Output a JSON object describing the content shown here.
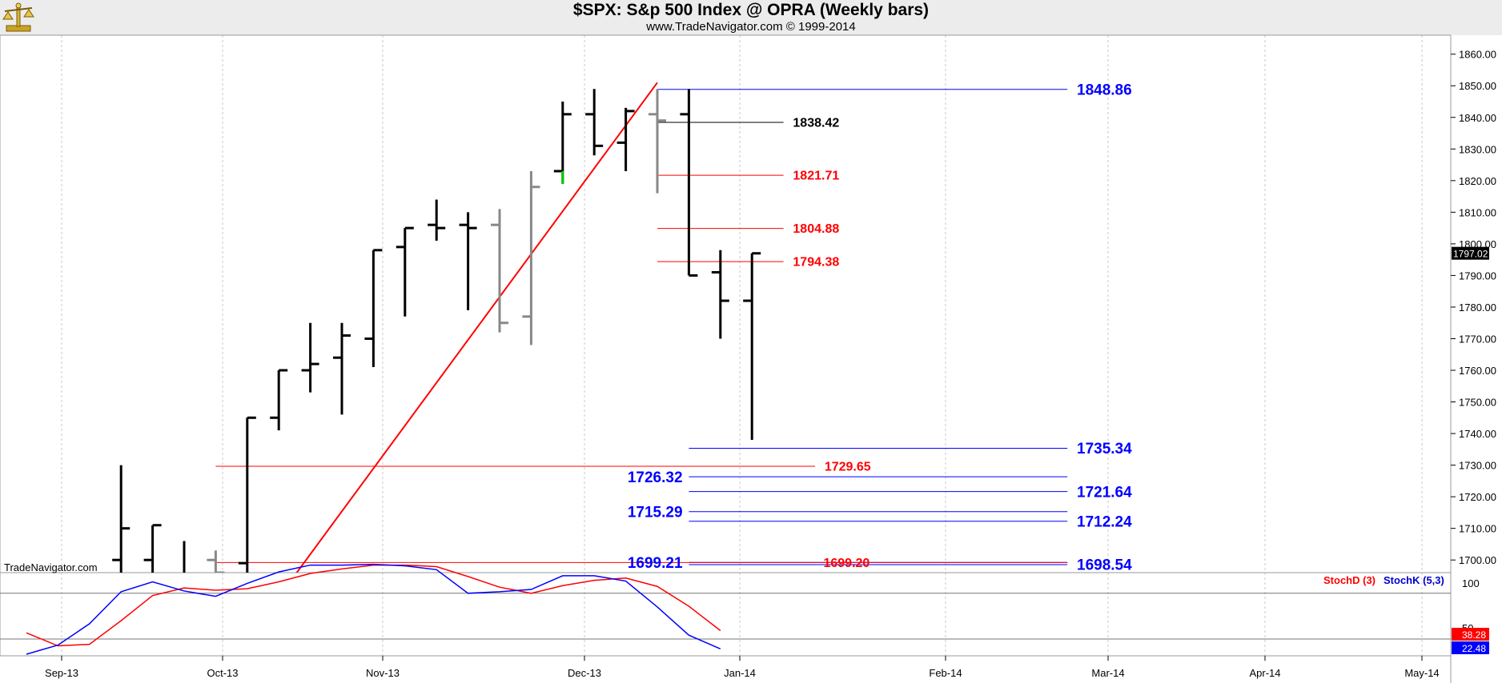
{
  "header": {
    "title": "$SPX:  S&p 500 Index @ OPRA  (Weekly bars)",
    "subtitle": "www.TradeNavigator.com © 1999-2014",
    "watermark": "TradeNavigator.com",
    "logo_icon": "gold-balance-scale-icon"
  },
  "chart_data": {
    "type": "ohlc",
    "x_tick_labels": [
      "Sep-13",
      "Oct-13",
      "Nov-13",
      "Dec-13",
      "Jan-14",
      "Feb-14",
      "Mar-14",
      "Apr-14",
      "May-14"
    ],
    "price_axis": {
      "ylim": [
        1696,
        1866
      ],
      "ticks": [
        1700,
        1710,
        1720,
        1730,
        1740,
        1750,
        1760,
        1770,
        1780,
        1790,
        1800,
        1810,
        1820,
        1830,
        1840,
        1850,
        1860
      ],
      "last_price": "1797.02"
    },
    "bars": [
      {
        "w": 3,
        "o": 1700,
        "h": 1730,
        "l": 1690,
        "c": 1710,
        "color": "#000000"
      },
      {
        "w": 4,
        "o": 1700,
        "h": 1711,
        "l": 1690,
        "c": 1711,
        "color": "#000000"
      },
      {
        "w": 5,
        "o": 1690,
        "h": 1706,
        "l": 1680,
        "c": 1690,
        "color": "#000000"
      },
      {
        "w": 6,
        "o": 1700,
        "h": 1703,
        "l": 1688,
        "c": 1696,
        "color": "#888888"
      },
      {
        "w": 7,
        "o": 1699,
        "h": 1745,
        "l": 1695,
        "c": 1745,
        "color": "#000000"
      },
      {
        "w": 8,
        "o": 1745,
        "h": 1760,
        "l": 1741,
        "c": 1760,
        "color": "#000000"
      },
      {
        "w": 9,
        "o": 1760,
        "h": 1775,
        "l": 1753,
        "c": 1762,
        "color": "#000000"
      },
      {
        "w": 10,
        "o": 1764,
        "h": 1775,
        "l": 1746,
        "c": 1771,
        "color": "#000000"
      },
      {
        "w": 11,
        "o": 1770,
        "h": 1798,
        "l": 1761,
        "c": 1798,
        "color": "#000000"
      },
      {
        "w": 12,
        "o": 1799,
        "h": 1805,
        "l": 1777,
        "c": 1805,
        "color": "#000000"
      },
      {
        "w": 13,
        "o": 1806,
        "h": 1814,
        "l": 1801,
        "c": 1805,
        "color": "#000000"
      },
      {
        "w": 14,
        "o": 1806,
        "h": 1810,
        "l": 1779,
        "c": 1805,
        "color": "#000000"
      },
      {
        "w": 15,
        "o": 1806,
        "h": 1811,
        "l": 1772,
        "c": 1775,
        "color": "#888888"
      },
      {
        "w": 16,
        "o": 1777,
        "h": 1823,
        "l": 1768,
        "c": 1818,
        "color": "#888888"
      },
      {
        "w": 17,
        "o": 1823,
        "h": 1845,
        "l": 1819,
        "c": 1841,
        "color": "#000000",
        "low_tail": "#00cc00"
      },
      {
        "w": 18,
        "o": 1841,
        "h": 1849,
        "l": 1828,
        "c": 1831,
        "color": "#000000"
      },
      {
        "w": 19,
        "o": 1832,
        "h": 1843,
        "l": 1823,
        "c": 1842,
        "color": "#000000"
      },
      {
        "w": 20,
        "o": 1841,
        "h": 1849,
        "l": 1816,
        "c": 1839,
        "color": "#888888"
      },
      {
        "w": 21,
        "o": 1841,
        "h": 1849,
        "l": 1790,
        "c": 1790,
        "color": "#000000"
      },
      {
        "w": 22,
        "o": 1791,
        "h": 1798,
        "l": 1770,
        "c": 1782,
        "color": "#000000"
      },
      {
        "w": 23,
        "o": 1782,
        "h": 1797,
        "l": 1738,
        "c": 1797,
        "color": "#000000"
      }
    ],
    "trendline": {
      "from": {
        "w": 7.98,
        "p": 1688
      },
      "to": {
        "w": 20,
        "p": 1851
      },
      "color": "#ff0000"
    },
    "levels": [
      {
        "value": "1848.86",
        "p": 1848.86,
        "w0": 20,
        "w1": 33,
        "color": "#0000ff",
        "label_w": 33.3,
        "label_side": "right",
        "size": 19
      },
      {
        "value": "1838.42",
        "p": 1838.42,
        "w0": 20,
        "w1": 24,
        "color": "#000000",
        "label_w": 24.3,
        "label_side": "right",
        "size": 16
      },
      {
        "value": "1821.71",
        "p": 1821.71,
        "w0": 20,
        "w1": 24,
        "color": "#ff0000",
        "label_w": 24.3,
        "label_side": "right",
        "size": 16
      },
      {
        "value": "1804.88",
        "p": 1804.88,
        "w0": 20,
        "w1": 24,
        "color": "#ff0000",
        "label_w": 24.3,
        "label_side": "right",
        "size": 16
      },
      {
        "value": "1794.38",
        "p": 1794.38,
        "w0": 20,
        "w1": 24,
        "color": "#ff0000",
        "label_w": 24.3,
        "label_side": "right",
        "size": 16
      },
      {
        "value": "1735.34",
        "p": 1735.34,
        "w0": 21,
        "w1": 33,
        "color": "#0000ff",
        "label_w": 33.3,
        "label_side": "right",
        "size": 19
      },
      {
        "value": "1729.65",
        "p": 1729.65,
        "w0": 6,
        "w1": 25,
        "color": "#ff0000",
        "label_w": 25.3,
        "label_side": "right",
        "size": 16
      },
      {
        "value": "1726.32",
        "p": 1726.32,
        "w0": 21,
        "w1": 33,
        "color": "#0000ff",
        "label_w": 20.8,
        "label_side": "left",
        "size": 19
      },
      {
        "value": "1721.64",
        "p": 1721.64,
        "w0": 21,
        "w1": 33,
        "color": "#0000ff",
        "label_w": 33.3,
        "label_side": "right",
        "size": 19
      },
      {
        "value": "1715.29",
        "p": 1715.29,
        "w0": 21,
        "w1": 33,
        "color": "#0000ff",
        "label_w": 20.8,
        "label_side": "left",
        "size": 19
      },
      {
        "value": "1712.24",
        "p": 1712.24,
        "w0": 21,
        "w1": 33,
        "color": "#0000ff",
        "label_w": 33.3,
        "label_side": "right",
        "size": 19
      },
      {
        "value": "1699.21",
        "p": 1699.21,
        "w0": 21,
        "w1": 33,
        "color": "#0000ff",
        "label_w": 20.8,
        "label_side": "left",
        "size": 19
      },
      {
        "value": "1699.20",
        "p": 1699.2,
        "w0": 6,
        "w1": 33,
        "color": "#ff0000",
        "label_w": 26,
        "label_side": "center",
        "size": 16
      },
      {
        "value": "1698.54",
        "p": 1698.54,
        "w0": 21,
        "w1": 33,
        "color": "#0000ff",
        "label_w": 33.3,
        "label_side": "right",
        "size": 19
      }
    ],
    "stochastic": {
      "ylim": [
        0,
        105
      ],
      "ticks": [
        "100",
        "50"
      ],
      "ref_lines": [
        80,
        20
      ],
      "stochK": {
        "name": "StochK (5,3)",
        "color": "#0000ff",
        "last": "22.48",
        "points": [
          [
            0,
            0
          ],
          [
            1,
            12
          ],
          [
            2,
            40
          ],
          [
            3,
            82
          ],
          [
            4,
            95
          ],
          [
            5,
            83
          ],
          [
            6,
            76
          ],
          [
            7,
            93
          ],
          [
            8,
            108
          ],
          [
            9,
            117
          ],
          [
            10,
            117
          ],
          [
            11,
            118
          ],
          [
            12,
            116
          ],
          [
            13,
            111
          ],
          [
            14,
            80
          ],
          [
            15,
            82
          ],
          [
            16,
            85
          ],
          [
            17,
            103
          ],
          [
            18,
            103
          ],
          [
            19,
            96
          ],
          [
            20,
            62
          ],
          [
            21,
            25
          ],
          [
            22,
            7
          ]
        ]
      },
      "stochD": {
        "name": "StochD (3)",
        "color": "#ff0000",
        "last": "38.28",
        "points": [
          [
            0,
            28
          ],
          [
            1,
            11
          ],
          [
            2,
            13
          ],
          [
            3,
            44
          ],
          [
            4,
            77
          ],
          [
            5,
            87
          ],
          [
            6,
            84
          ],
          [
            7,
            86
          ],
          [
            8,
            95
          ],
          [
            9,
            106
          ],
          [
            10,
            112
          ],
          [
            11,
            117
          ],
          [
            12,
            117
          ],
          [
            13,
            115
          ],
          [
            14,
            102
          ],
          [
            15,
            88
          ],
          [
            16,
            80
          ],
          [
            17,
            90
          ],
          [
            18,
            97
          ],
          [
            19,
            100
          ],
          [
            20,
            89
          ],
          [
            21,
            63
          ],
          [
            22,
            31
          ]
        ]
      }
    }
  }
}
